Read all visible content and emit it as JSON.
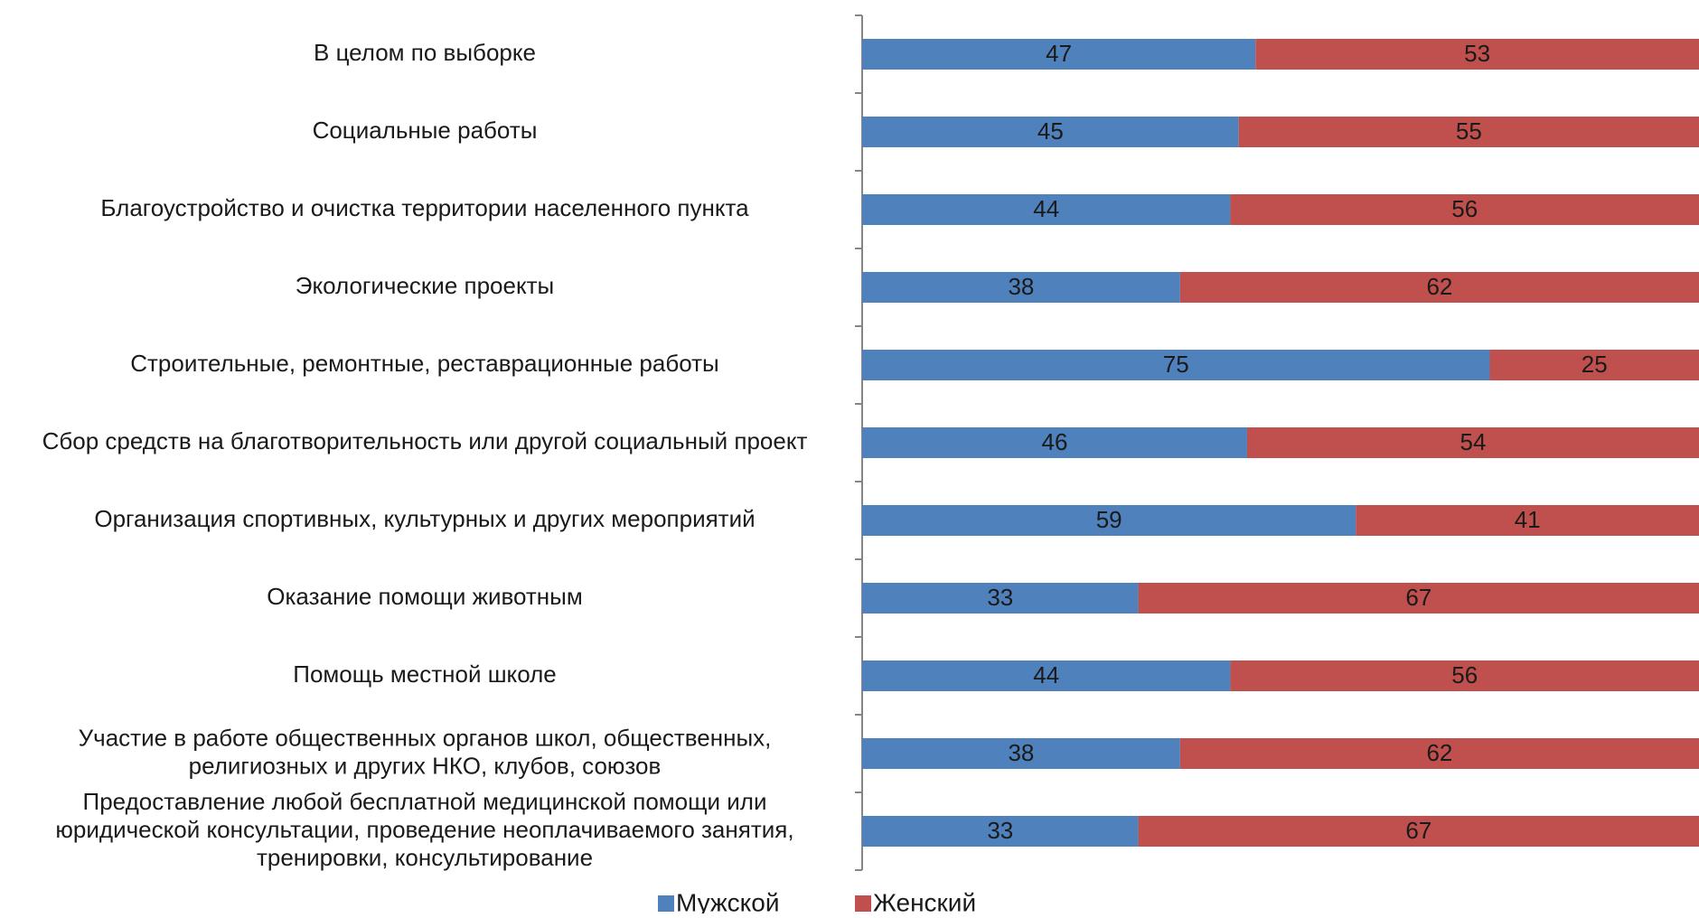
{
  "chart_data": {
    "type": "bar",
    "orientation": "horizontal",
    "stacked": "100%",
    "categories": [
      "В целом по выборке",
      "Социальные работы",
      "Благоустройство и очистка территории населенного пункта",
      "Экологические проекты",
      "Строительные, ремонтные, реставрационные работы",
      "Сбор средств на благотворительность или другой социальный проект",
      "Организация спортивных, культурных и других мероприятий",
      "Оказание помощи животным",
      "Помощь местной школе",
      "Участие в работе общественных органов школ, общественных, религиозных и других НКО, клубов, союзов",
      "Предоставление любой бесплатной медицинской помощи или юридической консультации, проведение неоплачиваемого занятия, тренировки, консультирование"
    ],
    "category_lines": [
      [
        "В целом по выборке"
      ],
      [
        "Социальные работы"
      ],
      [
        "Благоустройство и очистка территории населенного пункта"
      ],
      [
        "Экологические проекты"
      ],
      [
        "Строительные, ремонтные, реставрационные работы"
      ],
      [
        "Сбор средств на благотворительность или другой социальный проект"
      ],
      [
        "Организация спортивных, культурных и других мероприятий"
      ],
      [
        "Оказание помощи животным"
      ],
      [
        "Помощь местной школе"
      ],
      [
        "Участие в работе общественных органов школ, общественных,",
        "религиозных и других НКО, клубов, союзов"
      ],
      [
        "Предоставление любой бесплатной медицинской помощи или",
        "юридической консультации, проведение неоплачиваемого занятия,",
        "тренировки, консультирование"
      ]
    ],
    "series": [
      {
        "name": "Мужской",
        "color": "#4F81BD",
        "values": [
          47,
          45,
          44,
          38,
          75,
          46,
          59,
          33,
          44,
          38,
          33
        ]
      },
      {
        "name": "Женский",
        "color": "#C0504D",
        "values": [
          53,
          55,
          56,
          62,
          25,
          54,
          41,
          67,
          56,
          62,
          67
        ]
      }
    ],
    "xlim": [
      0,
      100
    ],
    "data_labels": true,
    "legend_position": "bottom",
    "grid": false,
    "title": "",
    "xlabel": "",
    "ylabel": ""
  }
}
